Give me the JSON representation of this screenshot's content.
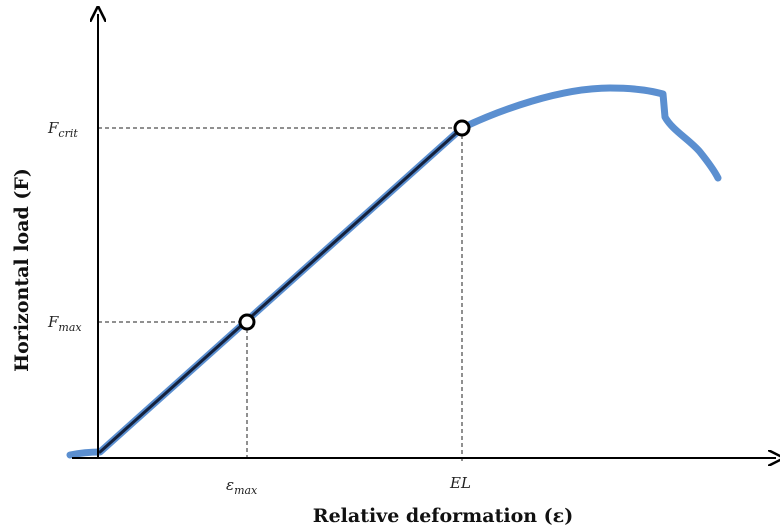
{
  "diagram": {
    "x_axis_title": "Relative deformation (ε)",
    "y_axis_title": "Horizontal load (F)",
    "labels": {
      "f_crit_main": "F",
      "f_crit_sub": "crit",
      "f_max_main": "F",
      "f_max_sub": "max",
      "eps_max_main": "ε",
      "eps_max_sub": "max",
      "el": "EL"
    },
    "colors": {
      "curve": "#5b8fd0",
      "linear_segment": "#14213d",
      "axes": "#000000"
    }
  }
}
